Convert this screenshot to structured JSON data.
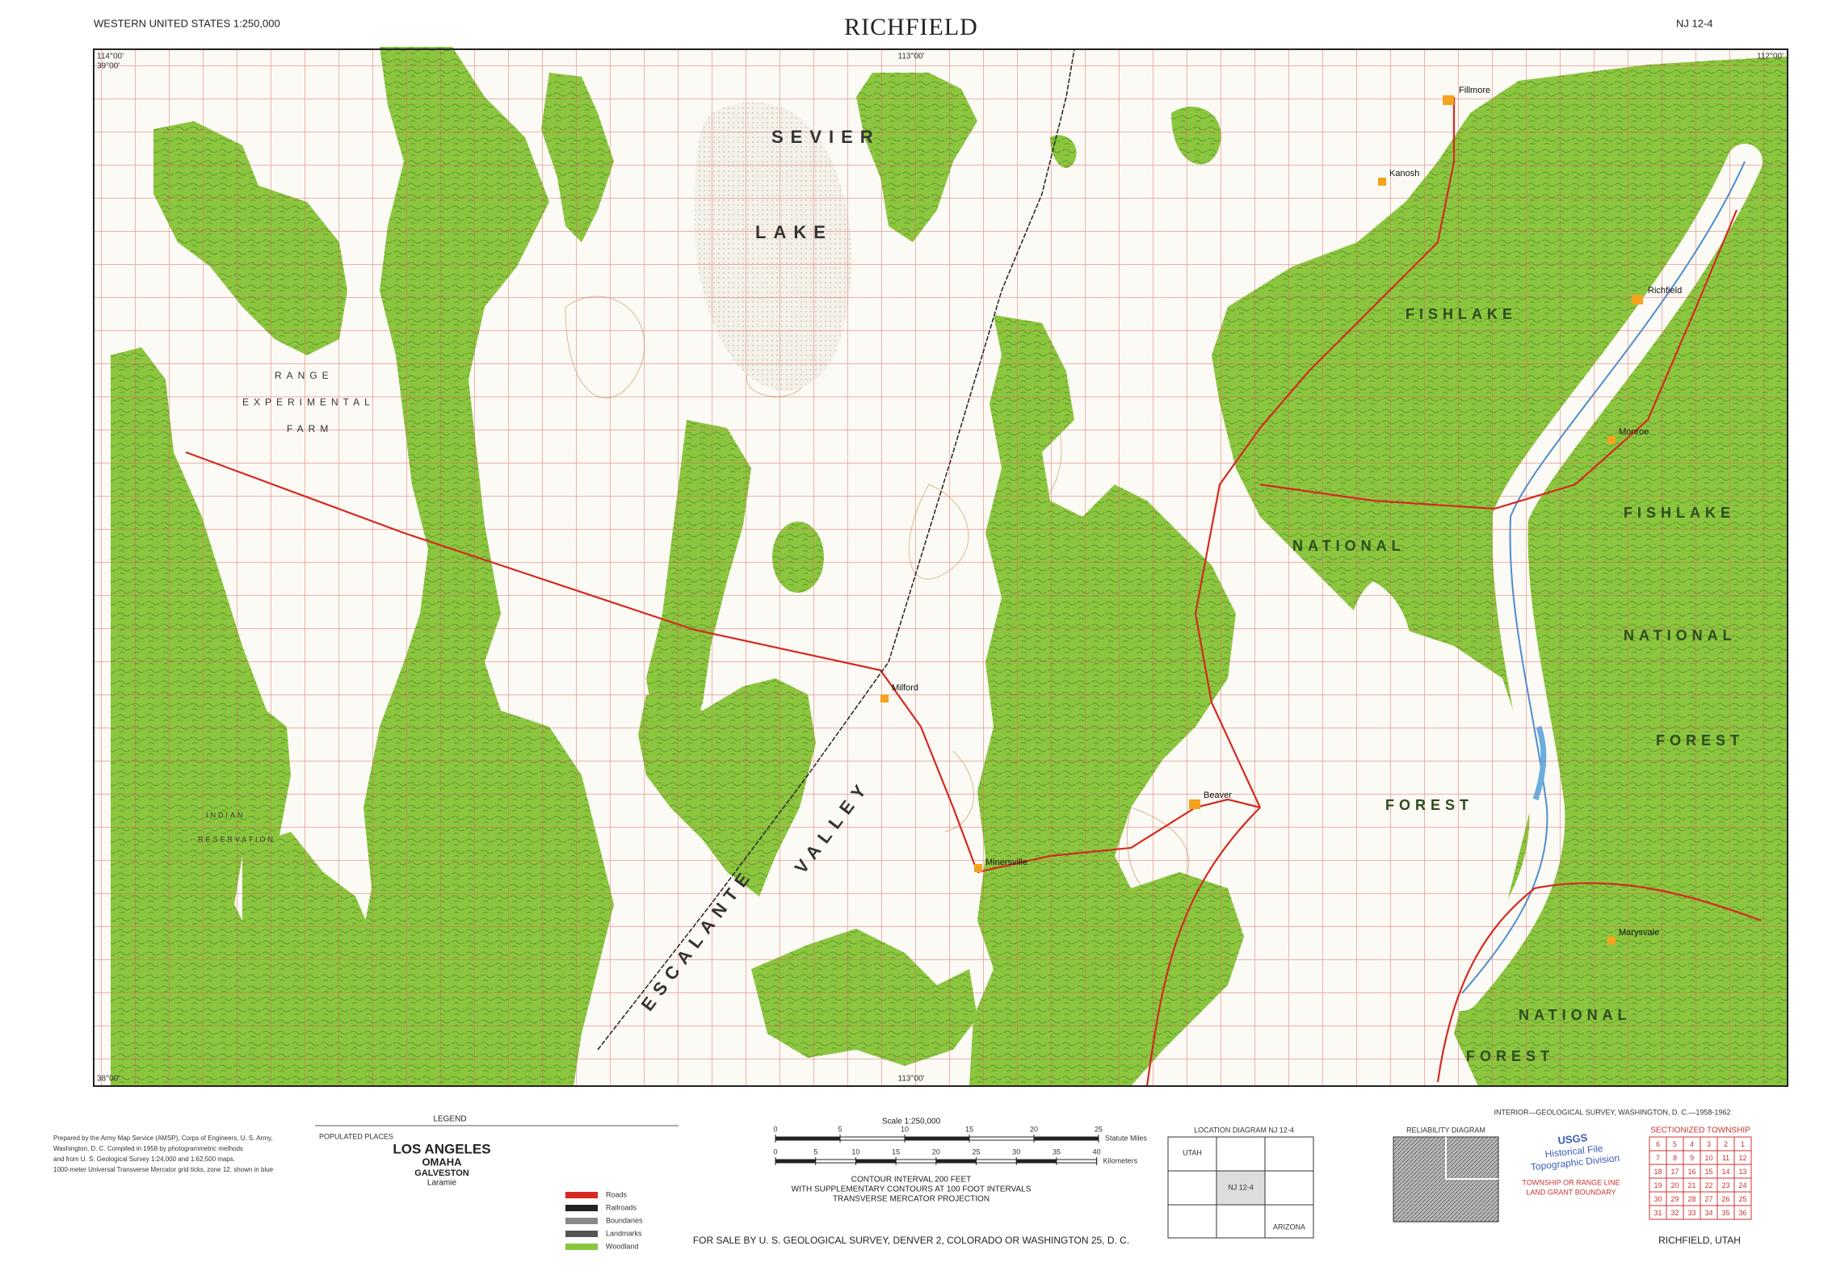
{
  "header": {
    "series": "WESTERN UNITED STATES 1:250,000",
    "title": "RICHFIELD",
    "sheet": "NJ 12-4",
    "agency": "INTERIOR—GEOLOGICAL SURVEY, WASHINGTON, D. C.—1958-1962"
  },
  "frame": {
    "lon_west": "114°00'",
    "lon_mid": "113°00'",
    "lon_east": "112°00'",
    "lat_north": "39°00'",
    "lat_south": "38°00'"
  },
  "map_labels": {
    "sevier": "SEVIER",
    "lake": "LAKE",
    "range": "RANGE",
    "experimental": "EXPERIMENTAL",
    "farm": "FARM",
    "fishlake_north": "FISHLAKE",
    "national_north": "NATIONAL",
    "forest_north": "FOREST",
    "fishlake_east": "FISHLAKE",
    "national_east": "NATIONAL",
    "forest_east": "FOREST",
    "national_south": "NATIONAL",
    "forest_south": "FOREST",
    "escalante": "ESCALANTE",
    "valley": "VALLEY",
    "indian": "INDIAN",
    "reservation": "RESERVATION"
  },
  "towns": {
    "richfield": "Richfield",
    "beaver": "Beaver",
    "milford": "Milford",
    "fillmore": "Fillmore",
    "minersville": "Minersville",
    "kanosh": "Kanosh",
    "monroe": "Monroe",
    "marysvale": "Marysvale"
  },
  "notes": [
    "Prepared by the Army Map Service (AMSP), Corps of Engineers, U. S. Army,",
    "Washington, D. C. Compiled in 1958 by photogrammetric methods",
    "and from U. S. Geological Survey 1:24,000 and 1:62,500 maps.",
    "1000-meter Universal Transverse Mercator grid ticks, zone 12, shown in blue"
  ],
  "legend": {
    "title": "LEGEND",
    "populated_places": "POPULATED PLACES",
    "city_1": "LOS ANGELES",
    "city_2": "OMAHA",
    "city_3": "GALVESTON",
    "city_4": "Laramie",
    "items": [
      "Roads",
      "Railroads",
      "Boundaries",
      "Landmarks",
      "Woodland"
    ]
  },
  "scale": {
    "title": "Scale 1:250,000",
    "statute_ticks": [
      0,
      5,
      10,
      15,
      20,
      25
    ],
    "statute_unit": "Statute Miles",
    "km_ticks": [
      0,
      5,
      10,
      15,
      20,
      25,
      30,
      35,
      40
    ],
    "km_unit": "Kilometers"
  },
  "contour": [
    "CONTOUR INTERVAL 200 FEET",
    "WITH SUPPLEMENTARY CONTOURS AT 100 FOOT INTERVALS",
    "TRANSVERSE MERCATOR PROJECTION"
  ],
  "sale": "FOR SALE BY U. S. GEOLOGICAL SURVEY, DENVER 2, COLORADO OR WASHINGTON 25, D. C.",
  "location_diagram": {
    "title": "LOCATION DIAGRAM NJ 12-4",
    "sheet": "NJ 12-4",
    "state_1": "UTAH",
    "state_2": "ARIZONA"
  },
  "reliability": {
    "title": "RELIABILITY DIAGRAM"
  },
  "boundaries": {
    "line_1": "TOWNSHIP OR RANGE LINE",
    "line_2": "LAND GRANT BOUNDARY"
  },
  "stamp": {
    "line_1": "USGS",
    "line_2": "Historical File",
    "line_3": "Topographic Division"
  },
  "township": {
    "title": "SECTIONIZED TOWNSHIP",
    "rows": [
      [
        6,
        5,
        4,
        3,
        2,
        1
      ],
      [
        7,
        8,
        9,
        10,
        11,
        12
      ],
      [
        18,
        17,
        16,
        15,
        14,
        13
      ],
      [
        19,
        20,
        21,
        22,
        23,
        24
      ],
      [
        30,
        29,
        28,
        27,
        26,
        25
      ],
      [
        31,
        32,
        33,
        34,
        35,
        36
      ]
    ]
  },
  "place": "RICHFIELD, UTAH"
}
